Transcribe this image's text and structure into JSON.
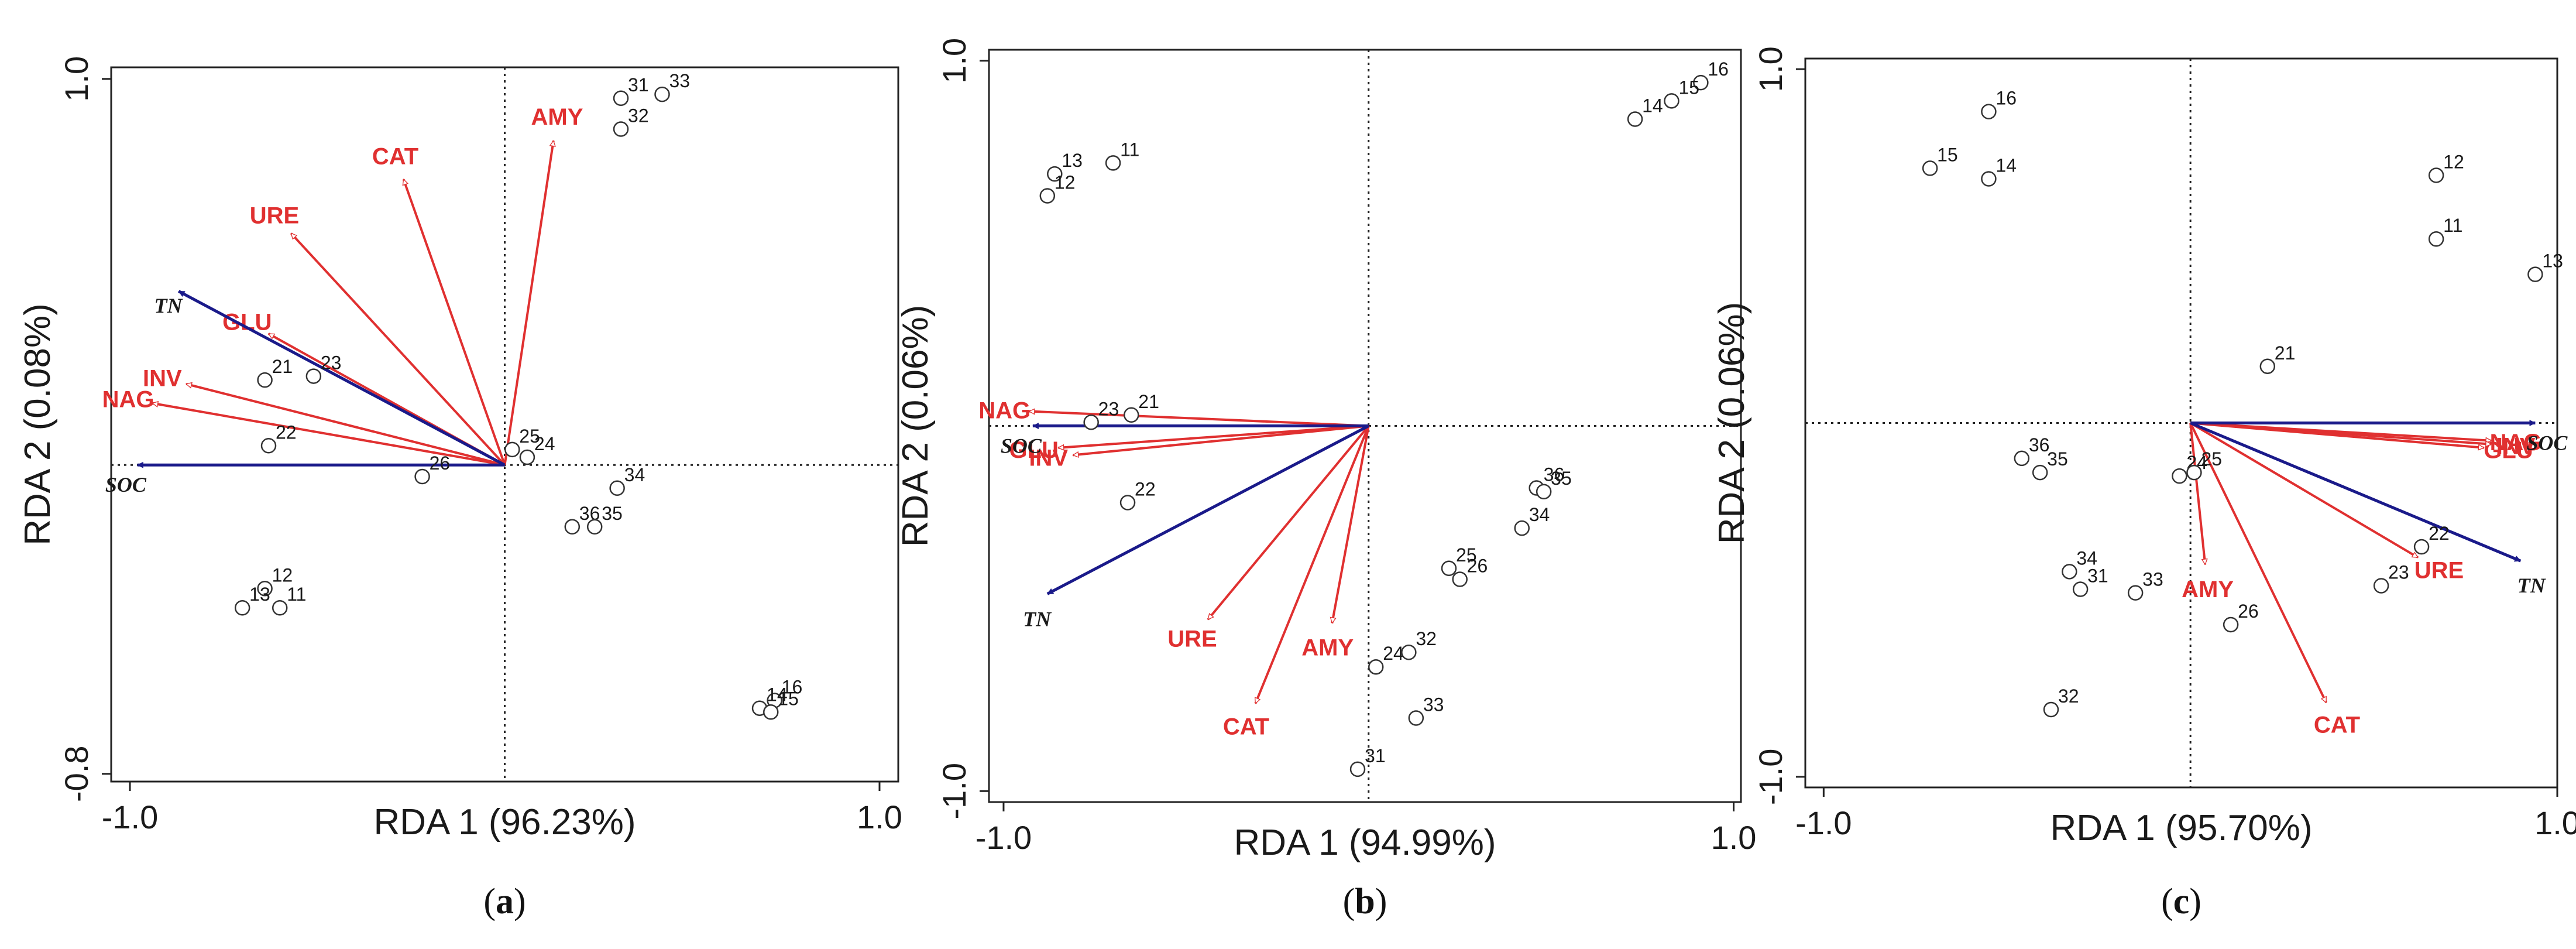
{
  "chart_data": [
    {
      "panel": "a",
      "caption_open": "(",
      "caption_letter": "a",
      "caption_close": ")",
      "type": "scatter",
      "xlabel": "RDA 1 (96.23%)",
      "ylabel": "RDA 2 (0.08%)",
      "xlim": [
        -1.05,
        1.05
      ],
      "ylim": [
        -0.82,
        1.03
      ],
      "xticks": [
        {
          "v": -1.0,
          "label": "-1.0"
        },
        {
          "v": 1.0,
          "label": "1.0"
        }
      ],
      "yticks": [
        {
          "v": -0.8,
          "label": "-0.8"
        },
        {
          "v": 1.0,
          "label": "1.0"
        }
      ],
      "points": [
        {
          "label": "31",
          "x": 0.31,
          "y": 0.95
        },
        {
          "label": "32",
          "x": 0.31,
          "y": 0.87
        },
        {
          "label": "33",
          "x": 0.42,
          "y": 0.96
        },
        {
          "label": "21",
          "x": -0.64,
          "y": 0.22
        },
        {
          "label": "23",
          "x": -0.51,
          "y": 0.23
        },
        {
          "label": "22",
          "x": -0.63,
          "y": 0.05
        },
        {
          "label": "26",
          "x": -0.22,
          "y": -0.03
        },
        {
          "label": "25",
          "x": 0.02,
          "y": 0.04
        },
        {
          "label": "24",
          "x": 0.06,
          "y": 0.02
        },
        {
          "label": "34",
          "x": 0.3,
          "y": -0.06
        },
        {
          "label": "36",
          "x": 0.18,
          "y": -0.16
        },
        {
          "label": "35",
          "x": 0.24,
          "y": -0.16
        },
        {
          "label": "12",
          "x": -0.64,
          "y": -0.32
        },
        {
          "label": "13",
          "x": -0.7,
          "y": -0.37
        },
        {
          "label": "11",
          "x": -0.6,
          "y": -0.37
        },
        {
          "label": "16",
          "x": 0.72,
          "y": -0.61
        },
        {
          "label": "14",
          "x": 0.68,
          "y": -0.63
        },
        {
          "label": "15",
          "x": 0.71,
          "y": -0.64
        }
      ],
      "enzymes": [
        {
          "label": "AMY",
          "x": 0.13,
          "y": 0.84
        },
        {
          "label": "CAT",
          "x": -0.27,
          "y": 0.74
        },
        {
          "label": "URE",
          "x": -0.57,
          "y": 0.6
        },
        {
          "label": "GLU",
          "x": -0.63,
          "y": 0.34
        },
        {
          "label": "INV",
          "x": -0.85,
          "y": 0.21
        },
        {
          "label": "NAG",
          "x": -0.94,
          "y": 0.16
        }
      ],
      "env": [
        {
          "label": "TN",
          "x": -0.87,
          "y": 0.45
        },
        {
          "label": "SOC",
          "x": -0.98,
          "y": 0.0
        }
      ]
    },
    {
      "panel": "b",
      "caption_open": "(",
      "caption_letter": "b",
      "caption_close": ")",
      "type": "scatter",
      "xlabel": "RDA 1 (94.99%)",
      "ylabel": "RDA 2 (0.06%)",
      "xlim": [
        -1.04,
        1.02
      ],
      "ylim": [
        -1.03,
        1.03
      ],
      "xticks": [
        {
          "v": -1.0,
          "label": "-1.0"
        },
        {
          "v": 1.0,
          "label": "1.0"
        }
      ],
      "yticks": [
        {
          "v": -1.0,
          "label": "-1.0"
        },
        {
          "v": 1.0,
          "label": "1.0"
        }
      ],
      "points": [
        {
          "label": "11",
          "x": -0.7,
          "y": 0.72
        },
        {
          "label": "13",
          "x": -0.86,
          "y": 0.69
        },
        {
          "label": "12",
          "x": -0.88,
          "y": 0.63
        },
        {
          "label": "16",
          "x": 0.91,
          "y": 0.94
        },
        {
          "label": "15",
          "x": 0.83,
          "y": 0.89
        },
        {
          "label": "14",
          "x": 0.73,
          "y": 0.84
        },
        {
          "label": "21",
          "x": -0.65,
          "y": 0.03
        },
        {
          "label": "23",
          "x": -0.76,
          "y": 0.01
        },
        {
          "label": "22",
          "x": -0.66,
          "y": -0.21
        },
        {
          "label": "36",
          "x": 0.46,
          "y": -0.17
        },
        {
          "label": "35",
          "x": 0.48,
          "y": -0.18
        },
        {
          "label": "34",
          "x": 0.42,
          "y": -0.28
        },
        {
          "label": "25",
          "x": 0.22,
          "y": -0.39
        },
        {
          "label": "26",
          "x": 0.25,
          "y": -0.42
        },
        {
          "label": "24",
          "x": 0.02,
          "y": -0.66
        },
        {
          "label": "32",
          "x": 0.11,
          "y": -0.62
        },
        {
          "label": "33",
          "x": 0.13,
          "y": -0.8
        },
        {
          "label": "31",
          "x": -0.03,
          "y": -0.94
        }
      ],
      "enzymes": [
        {
          "label": "NAG",
          "x": -0.93,
          "y": 0.04
        },
        {
          "label": "GLU",
          "x": -0.85,
          "y": -0.06
        },
        {
          "label": "INV",
          "x": -0.81,
          "y": -0.08
        },
        {
          "label": "URE",
          "x": -0.44,
          "y": -0.53
        },
        {
          "label": "CAT",
          "x": -0.31,
          "y": -0.76
        },
        {
          "label": "AMY",
          "x": -0.1,
          "y": -0.54
        }
      ],
      "env": [
        {
          "label": "SOC",
          "x": -0.92,
          "y": 0.0
        },
        {
          "label": "TN",
          "x": -0.88,
          "y": -0.46
        }
      ]
    },
    {
      "panel": "c",
      "caption_open": "(",
      "caption_letter": "c",
      "caption_close": ")",
      "type": "scatter",
      "xlabel": "RDA 1 (95.70%)",
      "ylabel": "RDA 2 (0.06%)",
      "xlim": [
        -1.05,
        1.0
      ],
      "ylim": [
        -1.03,
        1.03
      ],
      "xticks": [
        {
          "v": -1.0,
          "label": "-1.0"
        },
        {
          "v": 1.0,
          "label": "1.0"
        }
      ],
      "yticks": [
        {
          "v": -1.0,
          "label": "-1.0"
        },
        {
          "v": 1.0,
          "label": "1.0"
        }
      ],
      "points": [
        {
          "label": "16",
          "x": -0.55,
          "y": 0.88
        },
        {
          "label": "15",
          "x": -0.71,
          "y": 0.72
        },
        {
          "label": "14",
          "x": -0.55,
          "y": 0.69
        },
        {
          "label": "12",
          "x": 0.67,
          "y": 0.7
        },
        {
          "label": "11",
          "x": 0.67,
          "y": 0.52
        },
        {
          "label": "13",
          "x": 0.94,
          "y": 0.42
        },
        {
          "label": "21",
          "x": 0.21,
          "y": 0.16
        },
        {
          "label": "36",
          "x": -0.46,
          "y": -0.1
        },
        {
          "label": "35",
          "x": -0.41,
          "y": -0.14
        },
        {
          "label": "24",
          "x": -0.03,
          "y": -0.15
        },
        {
          "label": "25",
          "x": 0.01,
          "y": -0.14
        },
        {
          "label": "22",
          "x": 0.63,
          "y": -0.35
        },
        {
          "label": "34",
          "x": -0.33,
          "y": -0.42
        },
        {
          "label": "31",
          "x": -0.3,
          "y": -0.47
        },
        {
          "label": "33",
          "x": -0.15,
          "y": -0.48
        },
        {
          "label": "23",
          "x": 0.52,
          "y": -0.46
        },
        {
          "label": "26",
          "x": 0.11,
          "y": -0.57
        },
        {
          "label": "32",
          "x": -0.38,
          "y": -0.81
        }
      ],
      "enzymes": [
        {
          "label": "NAG",
          "x": 0.82,
          "y": -0.05
        },
        {
          "label": "GLU",
          "x": 0.8,
          "y": -0.07
        },
        {
          "label": "INV",
          "x": 0.82,
          "y": -0.06
        },
        {
          "label": "URE",
          "x": 0.62,
          "y": -0.38
        },
        {
          "label": "AMY",
          "x": 0.04,
          "y": -0.4
        },
        {
          "label": "CAT",
          "x": 0.37,
          "y": -0.79
        }
      ],
      "env": [
        {
          "label": "SOC",
          "x": 0.94,
          "y": 0.0
        },
        {
          "label": "TN",
          "x": 0.9,
          "y": -0.39
        }
      ]
    }
  ]
}
